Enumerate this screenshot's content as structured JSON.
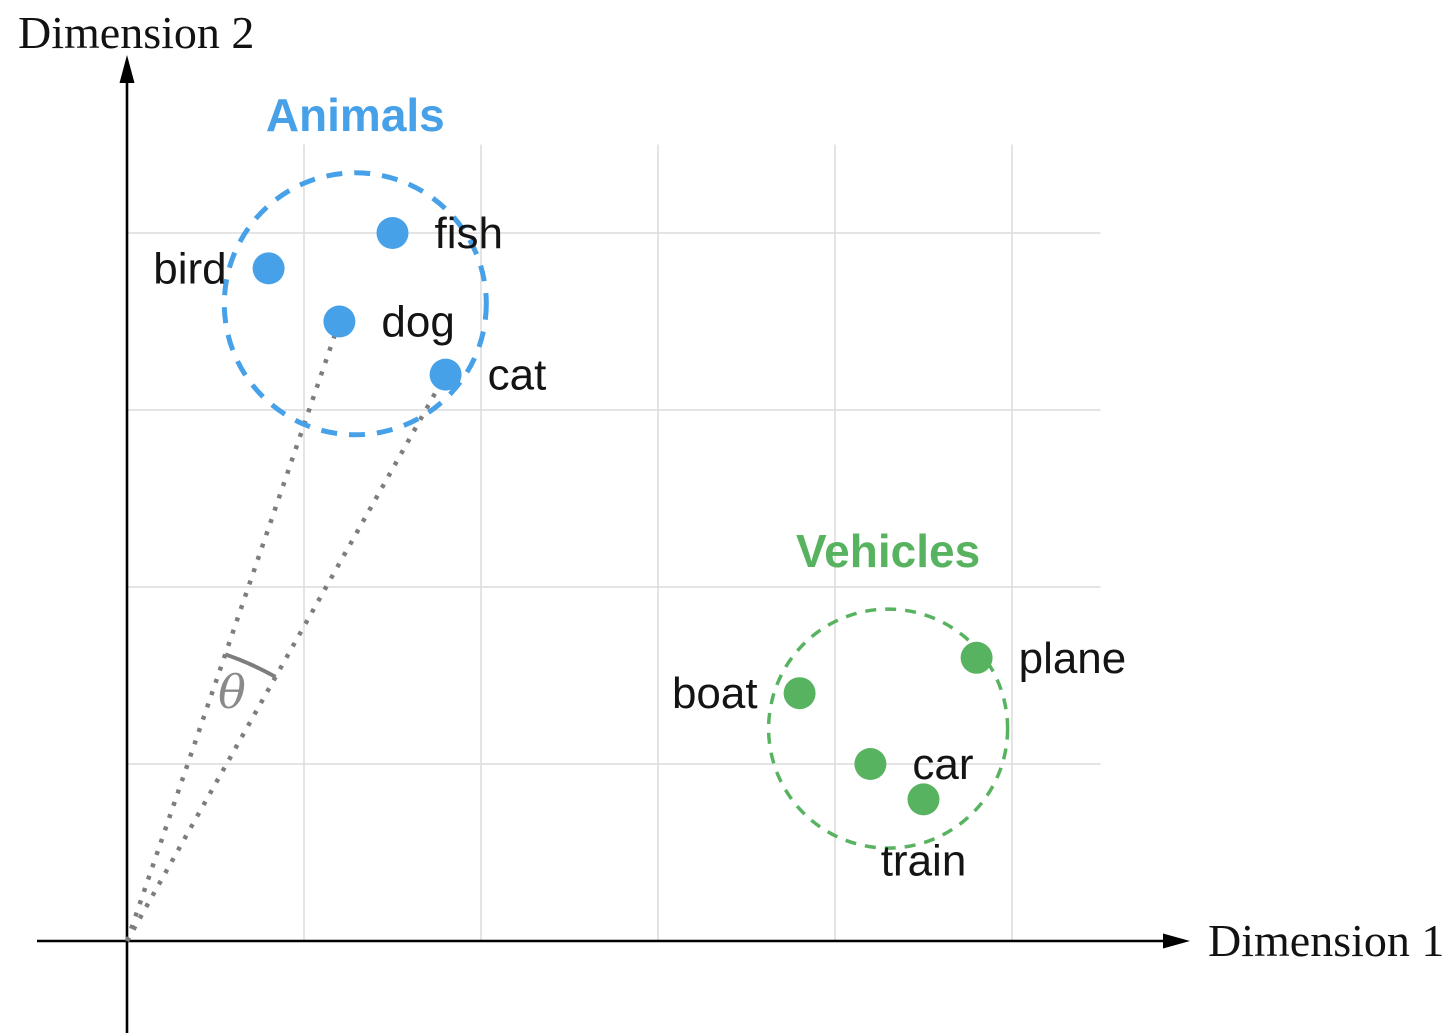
{
  "figure": {
    "x_axis_label": "Dimension 1",
    "y_axis_label": "Dimension 2",
    "angle_symbol": "θ"
  },
  "colors": {
    "animals_blue": "#47a1e9",
    "vehicles_green": "#58b360",
    "ray_gray": "#7d7d7d",
    "theta_gray": "#8a8a8a",
    "grid_gray": "#dcdcdc",
    "axis_black": "#000000",
    "label_black": "#141414"
  },
  "chart_data": {
    "type": "scatter",
    "title": "",
    "xlabel": "Dimension 1",
    "ylabel": "Dimension 2",
    "xlim": [
      0,
      5.5
    ],
    "ylim": [
      0,
      4.5
    ],
    "grid": true,
    "grid_spacing": 1,
    "tick_labels_shown": false,
    "series": [
      {
        "name": "Animals",
        "color": "#47a1e9",
        "points": [
          {
            "label": "fish",
            "x": 1.5,
            "y": 4.0,
            "label_side": "right"
          },
          {
            "label": "bird",
            "x": 0.8,
            "y": 3.8,
            "label_side": "left"
          },
          {
            "label": "dog",
            "x": 1.2,
            "y": 3.5,
            "label_side": "right"
          },
          {
            "label": "cat",
            "x": 1.8,
            "y": 3.2,
            "label_side": "right"
          }
        ],
        "cluster_circle": {
          "cx": 1.29,
          "cy": 3.6,
          "r": 0.74,
          "style": "dashed"
        }
      },
      {
        "name": "Vehicles",
        "color": "#58b360",
        "points": [
          {
            "label": "plane",
            "x": 4.8,
            "y": 1.6,
            "label_side": "right"
          },
          {
            "label": "boat",
            "x": 3.8,
            "y": 1.4,
            "label_side": "left"
          },
          {
            "label": "car",
            "x": 4.2,
            "y": 1.0,
            "label_side": "right"
          },
          {
            "label": "train",
            "x": 4.5,
            "y": 0.8,
            "label_side": "below"
          }
        ],
        "cluster_circle": {
          "cx": 4.3,
          "cy": 1.2,
          "r": 0.675,
          "style": "dashed"
        }
      }
    ],
    "annotations": {
      "angle_label": "θ",
      "angle_between": [
        "dog",
        "cat"
      ],
      "rays_from_origin_to": [
        "dog",
        "cat"
      ]
    }
  }
}
